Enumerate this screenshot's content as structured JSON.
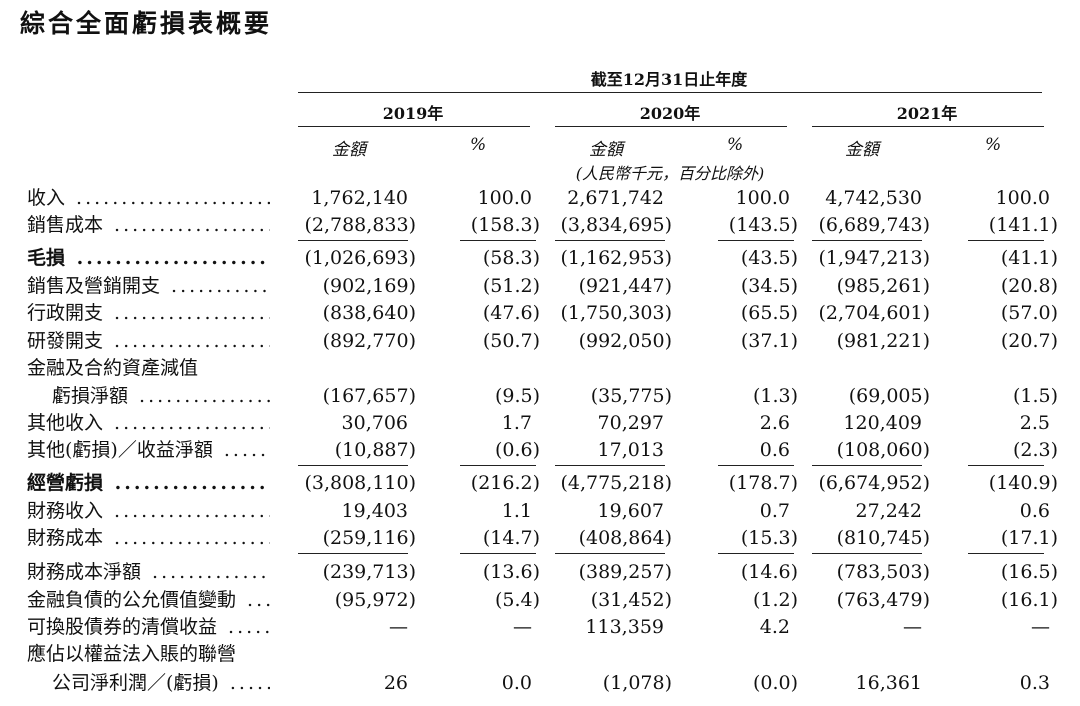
{
  "title": "綜合全面虧損表概要",
  "period_header": "截至12月31日止年度",
  "years": [
    "2019年",
    "2020年",
    "2021年"
  ],
  "col_amount": "金額",
  "col_pct": "%",
  "unit_note": "(人民幣千元，百分比除外)",
  "rows": [
    {
      "label": "收入",
      "a19": "1,762,140",
      "p19": "100.0",
      "a20": "2,671,742",
      "p20": "100.0",
      "a21": "4,742,530",
      "p21": "100.0"
    },
    {
      "label": "銷售成本",
      "a19": "(2,788,833)",
      "p19": "(158.3)",
      "a20": "(3,834,695)",
      "p20": "(143.5)",
      "a21": "(6,689,743)",
      "p21": "(141.1)"
    },
    {
      "label": "毛損",
      "a19": "(1,026,693)",
      "p19": "(58.3)",
      "a20": "(1,162,953)",
      "p20": "(43.5)",
      "a21": "(1,947,213)",
      "p21": "(41.1)"
    },
    {
      "label": "銷售及營銷開支",
      "a19": "(902,169)",
      "p19": "(51.2)",
      "a20": "(921,447)",
      "p20": "(34.5)",
      "a21": "(985,261)",
      "p21": "(20.8)"
    },
    {
      "label": "行政開支",
      "a19": "(838,640)",
      "p19": "(47.6)",
      "a20": "(1,750,303)",
      "p20": "(65.5)",
      "a21": "(2,704,601)",
      "p21": "(57.0)"
    },
    {
      "label": "研發開支",
      "a19": "(892,770)",
      "p19": "(50.7)",
      "a20": "(992,050)",
      "p20": "(37.1)",
      "a21": "(981,221)",
      "p21": "(20.7)"
    },
    {
      "label": "金融及合約資產減值"
    },
    {
      "label": "虧損淨額",
      "a19": "(167,657)",
      "p19": "(9.5)",
      "a20": "(35,775)",
      "p20": "(1.3)",
      "a21": "(69,005)",
      "p21": "(1.5)"
    },
    {
      "label": "其他收入",
      "a19": "30,706",
      "p19": "1.7",
      "a20": "70,297",
      "p20": "2.6",
      "a21": "120,409",
      "p21": "2.5"
    },
    {
      "label": "其他(虧損)／收益淨額",
      "a19": "(10,887)",
      "p19": "(0.6)",
      "a20": "17,013",
      "p20": "0.6",
      "a21": "(108,060)",
      "p21": "(2.3)"
    },
    {
      "label": "經營虧損",
      "a19": "(3,808,110)",
      "p19": "(216.2)",
      "a20": "(4,775,218)",
      "p20": "(178.7)",
      "a21": "(6,674,952)",
      "p21": "(140.9)"
    },
    {
      "label": "財務收入",
      "a19": "19,403",
      "p19": "1.1",
      "a20": "19,607",
      "p20": "0.7",
      "a21": "27,242",
      "p21": "0.6"
    },
    {
      "label": "財務成本",
      "a19": "(259,116)",
      "p19": "(14.7)",
      "a20": "(408,864)",
      "p20": "(15.3)",
      "a21": "(810,745)",
      "p21": "(17.1)"
    },
    {
      "label": "財務成本淨額",
      "a19": "(239,713)",
      "p19": "(13.6)",
      "a20": "(389,257)",
      "p20": "(14.6)",
      "a21": "(783,503)",
      "p21": "(16.5)"
    },
    {
      "label": "金融負債的公允價值變動",
      "a19": "(95,972)",
      "p19": "(5.4)",
      "a20": "(31,452)",
      "p20": "(1.2)",
      "a21": "(763,479)",
      "p21": "(16.1)"
    },
    {
      "label": "可換股債券的清償收益",
      "a19": "—",
      "p19": "—",
      "a20": "113,359",
      "p20": "4.2",
      "a21": "—",
      "p21": "—"
    },
    {
      "label": "應佔以權益法入賬的聯營"
    },
    {
      "label": "公司淨利潤／(虧損)",
      "a19": "26",
      "p19": "0.0",
      "a20": "(1,078)",
      "p20": "(0.0)",
      "a21": "16,361",
      "p21": "0.3"
    }
  ]
}
